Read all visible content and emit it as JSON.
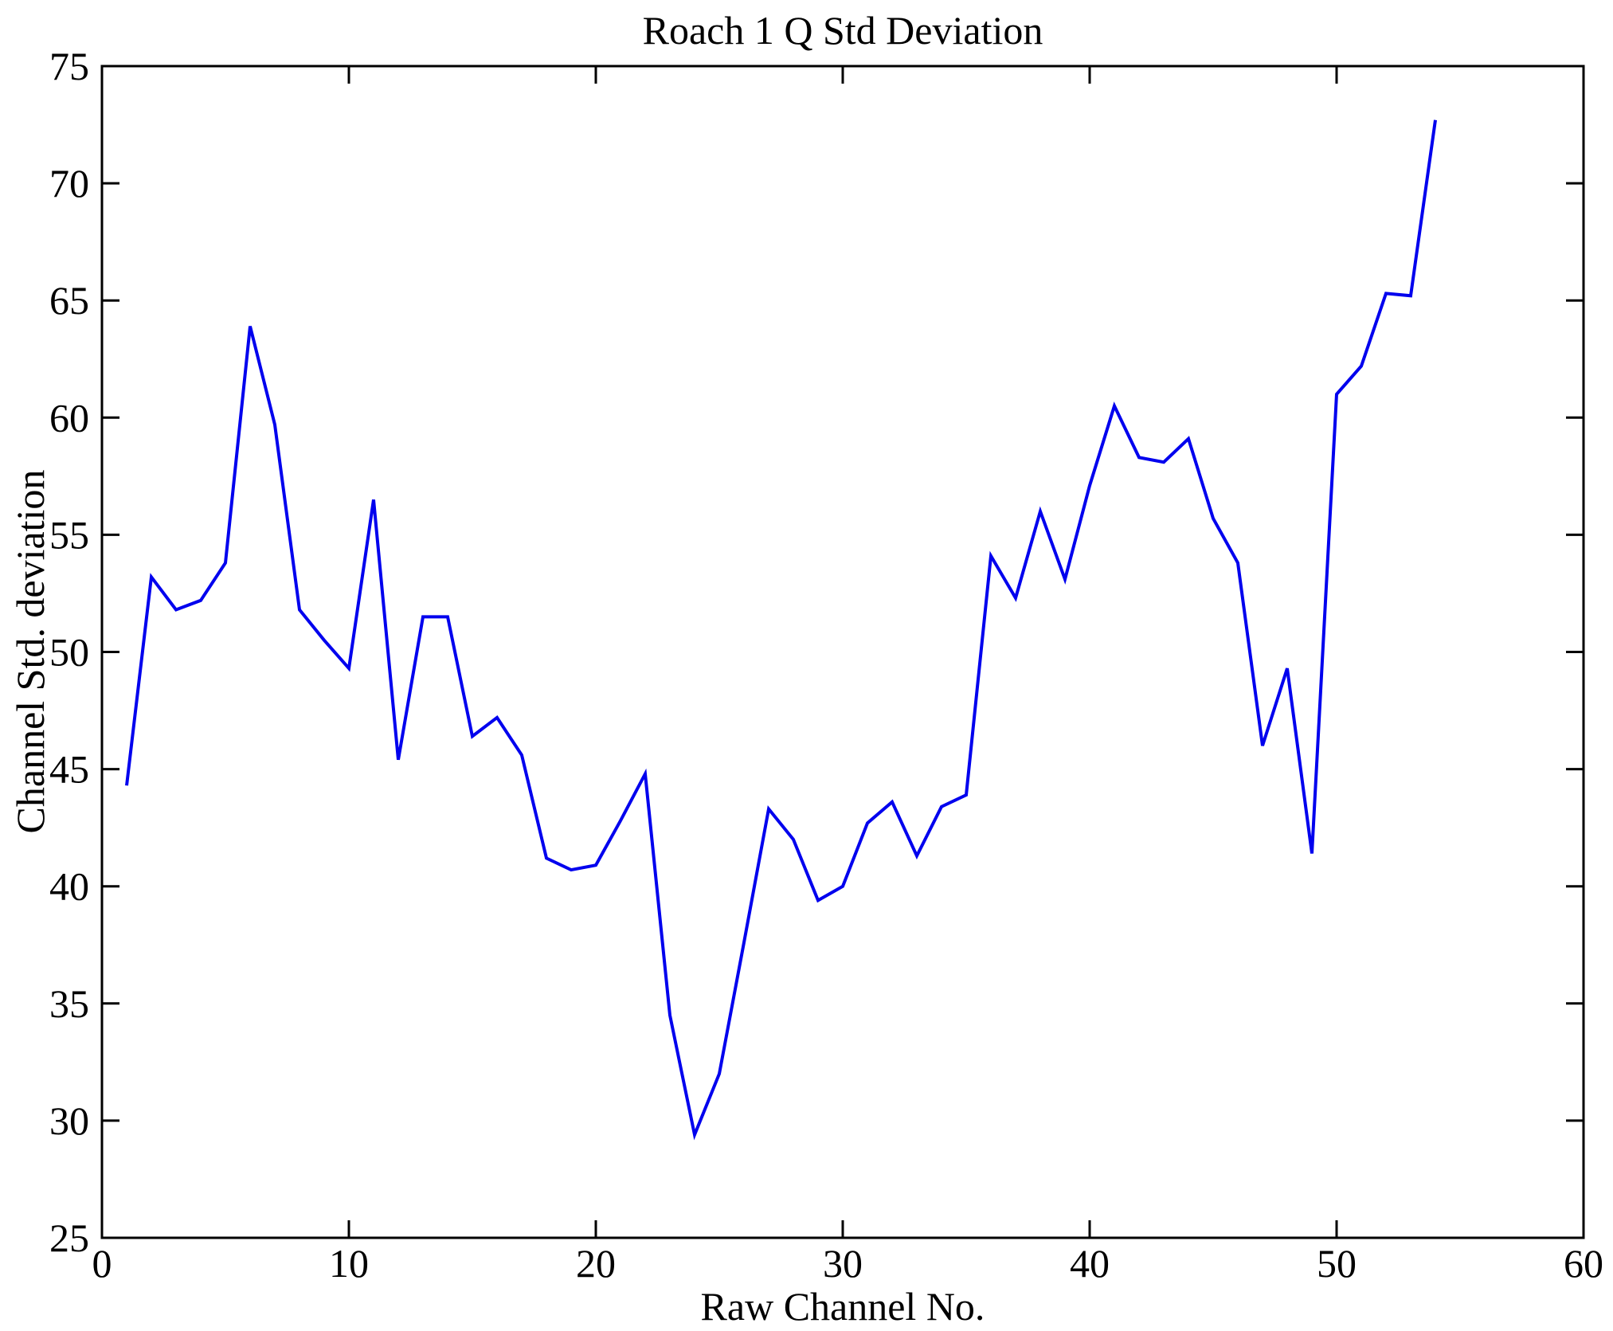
{
  "figure": {
    "background": "#ffffff",
    "frame_color": "#000000"
  },
  "chart_data": {
    "type": "line",
    "title": "Roach 1 Q Std Deviation",
    "xlabel": "Raw Channel No.",
    "ylabel": "Channel Std. deviation",
    "xlim": [
      0,
      60
    ],
    "ylim": [
      25,
      75
    ],
    "xticks": [
      0,
      10,
      20,
      30,
      40,
      50,
      60
    ],
    "yticks": [
      25,
      30,
      35,
      40,
      45,
      50,
      55,
      60,
      65,
      70,
      75
    ],
    "grid": false,
    "legend": null,
    "line_color": "#0000EE",
    "x": [
      1,
      2,
      3,
      4,
      5,
      6,
      7,
      8,
      9,
      10,
      11,
      12,
      13,
      14,
      15,
      16,
      17,
      18,
      19,
      20,
      21,
      22,
      23,
      24,
      25,
      26,
      27,
      28,
      29,
      30,
      31,
      32,
      33,
      34,
      35,
      36,
      37,
      38,
      39,
      40,
      41,
      42,
      43,
      44,
      45,
      46,
      47,
      48,
      49,
      50,
      51,
      52,
      53,
      54
    ],
    "values": [
      44.3,
      53.2,
      51.8,
      52.2,
      53.8,
      63.9,
      59.7,
      51.8,
      50.5,
      49.3,
      56.5,
      45.4,
      51.5,
      51.5,
      46.4,
      47.2,
      45.6,
      41.2,
      40.7,
      40.9,
      42.8,
      44.8,
      34.5,
      29.4,
      32.0,
      37.6,
      43.3,
      42.0,
      39.4,
      40.0,
      42.7,
      43.6,
      41.3,
      43.4,
      43.9,
      54.1,
      52.3,
      56.0,
      53.1,
      57.1,
      60.5,
      58.3,
      58.1,
      59.1,
      55.7,
      53.8,
      46.0,
      49.3,
      41.4,
      61.0,
      62.2,
      65.3,
      65.2,
      72.7
    ]
  }
}
